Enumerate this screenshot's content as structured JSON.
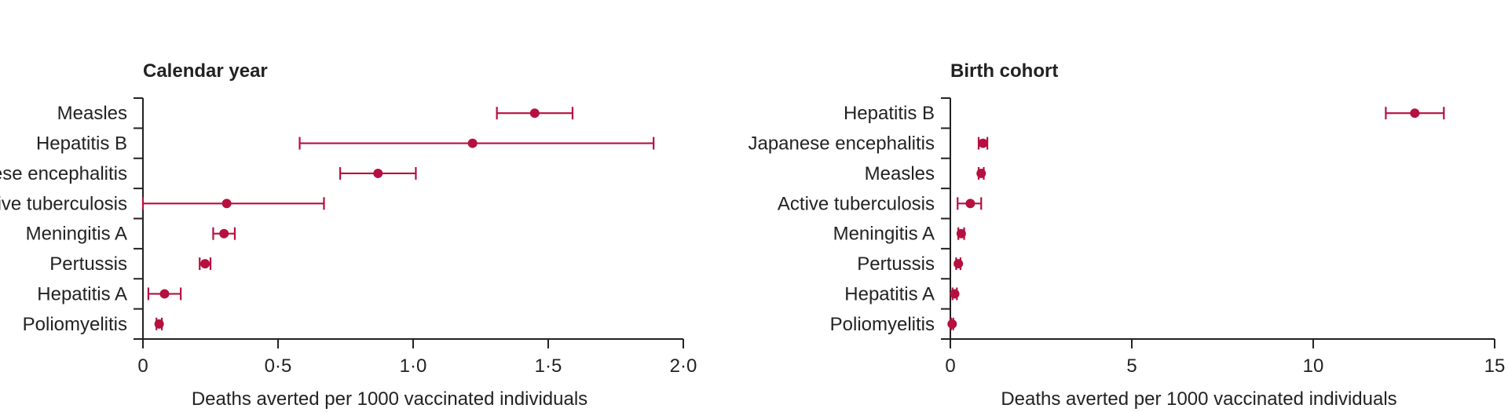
{
  "colors": {
    "marker": "#b5103f",
    "axis": "#222222"
  },
  "chart_data": [
    {
      "type": "scatter",
      "title": "Calendar year",
      "xlabel": "Deaths averted per 1000 vaccinated individuals",
      "xlim": [
        0,
        2.0
      ],
      "xticks": [
        0,
        0.5,
        1.0,
        1.5,
        2.0
      ],
      "xtick_labels": [
        "0",
        "0·5",
        "1·0",
        "1·5",
        "2·0"
      ],
      "categories": [
        "Measles",
        "Hepatitis B",
        "Japanese encephalitis",
        "Active tuberculosis",
        "Meningitis A",
        "Pertussis",
        "Hepatitis A",
        "Poliomyelitis"
      ],
      "estimates": [
        1.45,
        1.22,
        0.87,
        0.31,
        0.3,
        0.23,
        0.08,
        0.06
      ],
      "lower": [
        1.31,
        0.58,
        0.73,
        0.0,
        0.26,
        0.21,
        0.02,
        0.05
      ],
      "upper": [
        1.59,
        1.89,
        1.01,
        0.67,
        0.34,
        0.25,
        0.14,
        0.07
      ],
      "grid": false
    },
    {
      "type": "scatter",
      "title": "Birth cohort",
      "xlabel": "Deaths averted per 1000 vaccinated individuals",
      "xlim": [
        0,
        15
      ],
      "xticks": [
        0,
        5,
        10,
        15
      ],
      "xtick_labels": [
        "0",
        "5",
        "10",
        "15"
      ],
      "categories": [
        "Hepatitis B",
        "Japanese encephalitis",
        "Measles",
        "Active tuberculosis",
        "Meningitis A",
        "Pertussis",
        "Hepatitis A",
        "Poliomyelitis"
      ],
      "estimates": [
        12.8,
        0.9,
        0.85,
        0.55,
        0.3,
        0.22,
        0.12,
        0.05
      ],
      "lower": [
        12.0,
        0.78,
        0.78,
        0.2,
        0.22,
        0.16,
        0.06,
        0.02
      ],
      "upper": [
        13.6,
        1.02,
        0.92,
        0.85,
        0.38,
        0.28,
        0.18,
        0.08
      ],
      "grid": false
    }
  ]
}
